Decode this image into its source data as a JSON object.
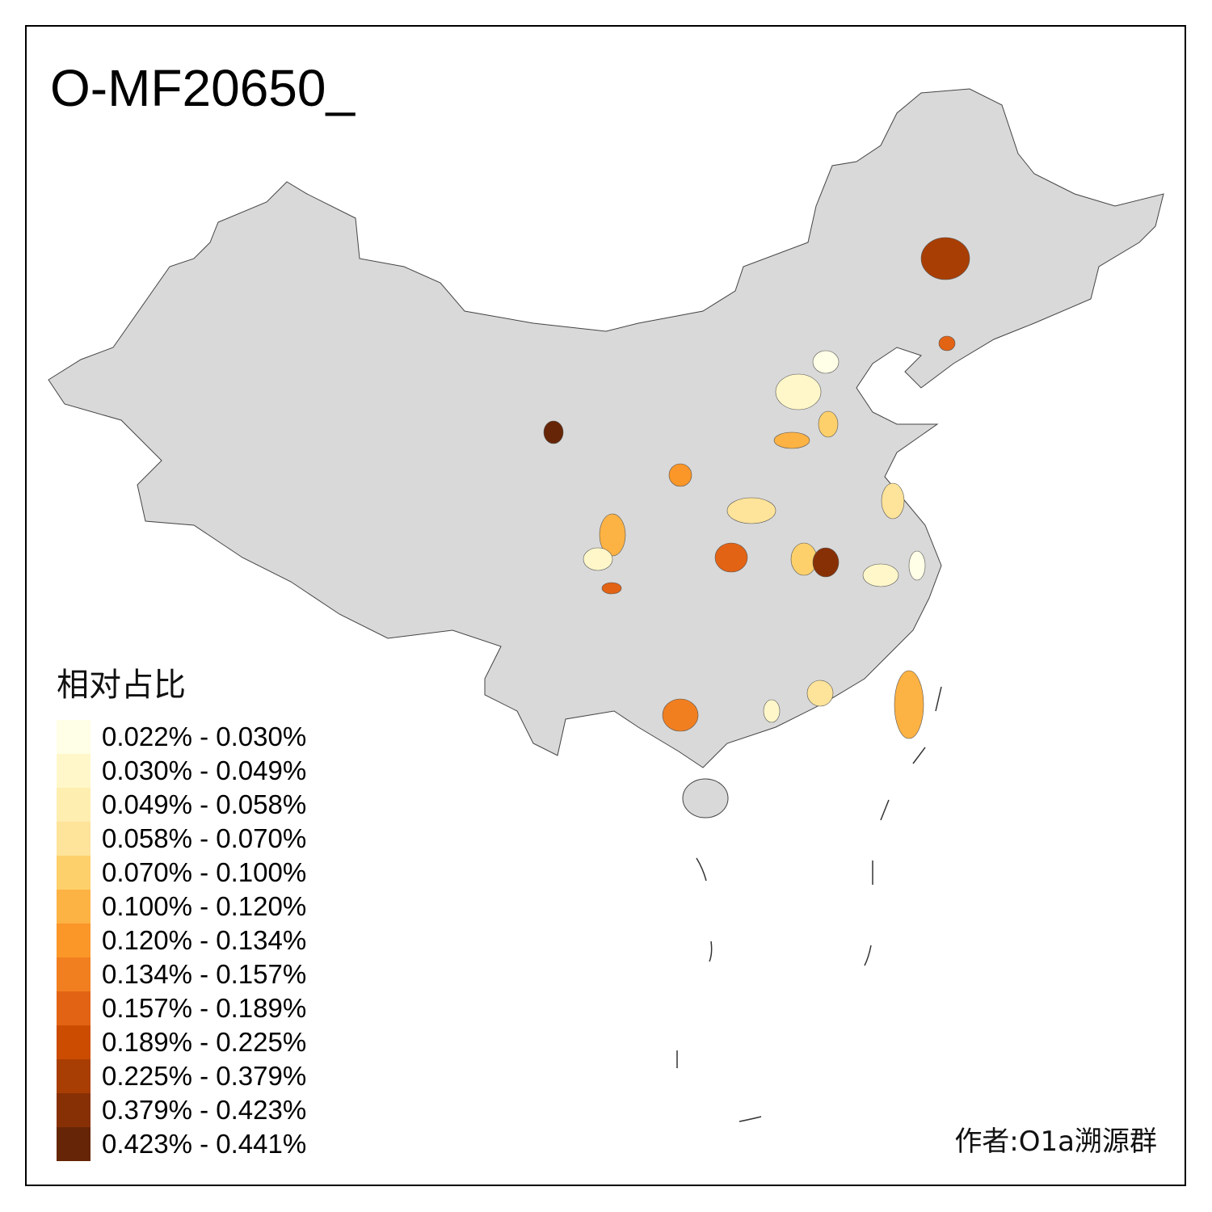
{
  "title": "O-MF20650_",
  "legend": {
    "title": "相对占比",
    "bins": [
      {
        "label": "0.022% - 0.030%",
        "color": "#fffee6"
      },
      {
        "label": "0.030% - 0.049%",
        "color": "#fff7c9"
      },
      {
        "label": "0.049% - 0.058%",
        "color": "#feeeb0"
      },
      {
        "label": "0.058% - 0.070%",
        "color": "#fee39a"
      },
      {
        "label": "0.070% - 0.100%",
        "color": "#fed06b"
      },
      {
        "label": "0.100% - 0.120%",
        "color": "#fdb244"
      },
      {
        "label": "0.120% - 0.134%",
        "color": "#fb9628"
      },
      {
        "label": "0.134% - 0.157%",
        "color": "#f17f20"
      },
      {
        "label": "0.157% - 0.189%",
        "color": "#e36314"
      },
      {
        "label": "0.189% - 0.225%",
        "color": "#cc4c02"
      },
      {
        "label": "0.225% - 0.379%",
        "color": "#a93e04"
      },
      {
        "label": "0.379% - 0.423%",
        "color": "#883005"
      },
      {
        "label": "0.423% - 0.441%",
        "color": "#662506"
      }
    ]
  },
  "map": {
    "base_color": "#d9d9d9",
    "border_color": "#444444",
    "highlighted_region_bins": [
      10,
      8,
      12,
      0,
      1,
      5,
      4,
      6,
      3,
      3,
      5,
      1,
      8,
      8,
      4,
      11,
      1,
      0,
      7,
      3,
      1,
      5
    ]
  },
  "credit": "作者:O1a溯源群"
}
